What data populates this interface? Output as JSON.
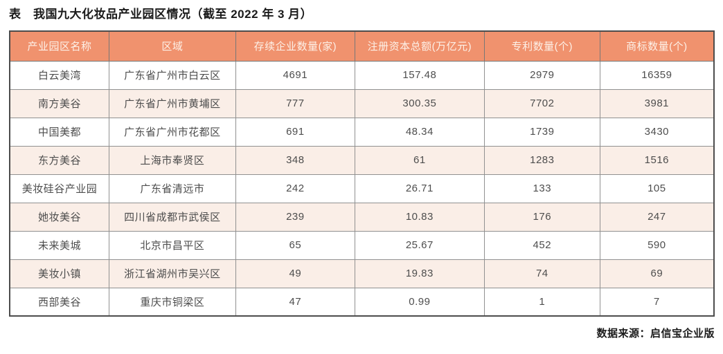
{
  "page": {
    "title": "表　我国九大化妆品产业园区情况（截至 2022 年 3 月）",
    "source_note": "数据来源：启信宝企业版"
  },
  "table": {
    "headers": [
      "产业园区名称",
      "区域",
      "存续企业数量(家)",
      "注册资本总额(万亿元)",
      "专利数量(个)",
      "商标数量(个)"
    ],
    "rows": [
      [
        "白云美湾",
        "广东省广州市白云区",
        4691,
        157.48,
        2979,
        16359
      ],
      [
        "南方美谷",
        "广东省广州市黄埔区",
        777,
        300.35,
        7702,
        3981
      ],
      [
        "中国美都",
        "广东省广州市花都区",
        691,
        48.34,
        1739,
        3430
      ],
      [
        "东方美谷",
        "上海市奉贤区",
        348,
        61,
        1283,
        1516
      ],
      [
        "美妆硅谷产业园",
        "广东省清远市",
        242,
        26.71,
        133,
        105
      ],
      [
        "她妆美谷",
        "四川省成都市武侯区",
        239,
        10.83,
        176,
        247
      ],
      [
        "未来美城",
        "北京市昌平区",
        65,
        25.67,
        452,
        590
      ],
      [
        "美妆小镇",
        "浙江省湖州市吴兴区",
        49,
        19.83,
        74,
        69
      ],
      [
        "西部美谷",
        "重庆市铜梁区",
        47,
        0.99,
        1,
        7
      ]
    ]
  },
  "colors": {
    "header_bg": "#F0926E",
    "header_text": "#FDF1E8",
    "row_bg": "#FFFFFF",
    "row_alt_bg": "#FAEEE7",
    "cell_text": "#4D4D4D",
    "outer_border": "#4C4C4C",
    "inner_border": "#909090",
    "title_text": "#1A1A1A"
  }
}
